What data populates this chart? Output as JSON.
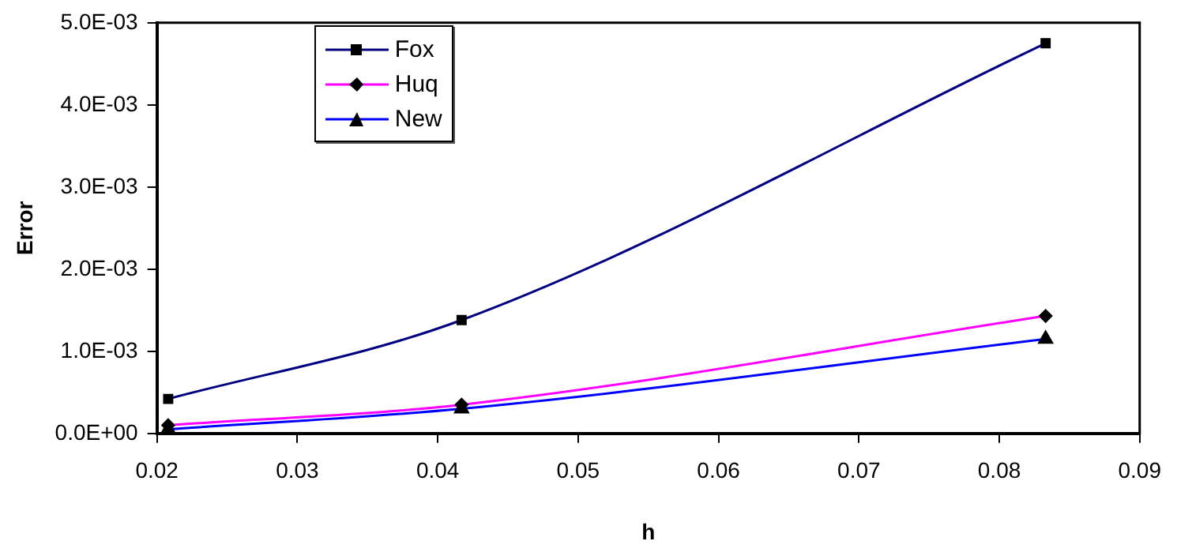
{
  "chart_data": {
    "type": "line",
    "xlabel": "h",
    "ylabel": "Error",
    "x": [
      0.0208,
      0.0417,
      0.0833
    ],
    "series": [
      {
        "name": "Fox",
        "color": "#000080",
        "marker": "square",
        "values": [
          0.00042,
          0.00138,
          0.00475
        ]
      },
      {
        "name": "Huq",
        "color": "#ff00ff",
        "marker": "diamond",
        "values": [
          0.0001,
          0.00035,
          0.00143
        ]
      },
      {
        "name": "New",
        "color": "#0000ff",
        "marker": "triangle",
        "values": [
          5e-05,
          0.0003,
          0.00115
        ]
      }
    ],
    "xlim": [
      0.02,
      0.09
    ],
    "xticks": [
      0.02,
      0.03,
      0.04,
      0.05,
      0.06,
      0.07,
      0.08,
      0.09
    ],
    "ylim": [
      0,
      0.005
    ],
    "yticks": [
      {
        "value": 0,
        "label": "0.0E+00"
      },
      {
        "value": 0.001,
        "label": "1.0E-03"
      },
      {
        "value": 0.002,
        "label": "2.0E-03"
      },
      {
        "value": 0.003,
        "label": "3.0E-03"
      },
      {
        "value": 0.004,
        "label": "4.0E-03"
      },
      {
        "value": 0.005,
        "label": "5.0E-03"
      }
    ],
    "grid": false,
    "legend": "top left",
    "line_style": "solid"
  }
}
